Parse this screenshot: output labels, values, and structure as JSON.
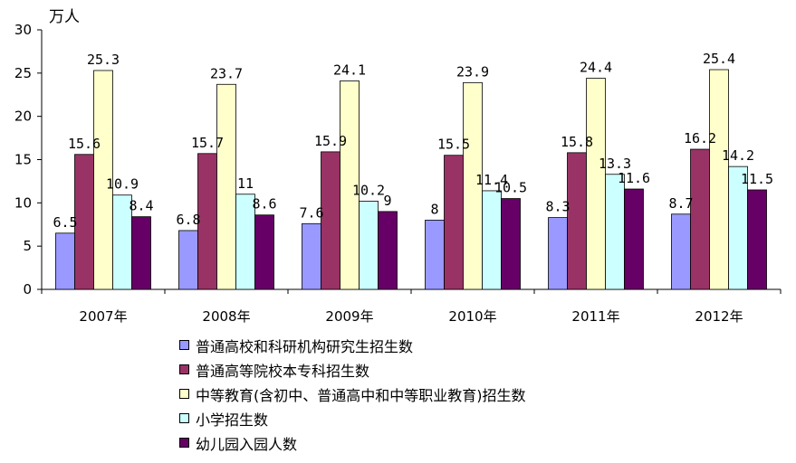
{
  "chart_data": {
    "type": "bar",
    "unit_label": "万人",
    "categories": [
      "2007年",
      "2008年",
      "2009年",
      "2010年",
      "2011年",
      "2012年"
    ],
    "ylim": [
      0,
      30
    ],
    "yticks": [
      0,
      5,
      10,
      15,
      20,
      25,
      30
    ],
    "grid": false,
    "legend_position": "bottom",
    "series": [
      {
        "name": "普通高校和科研机构研究生招生数",
        "color": "#9999ff",
        "values": [
          6.5,
          6.8,
          7.6,
          8,
          8.3,
          8.7
        ]
      },
      {
        "name": "普通高等院校本专科招生数",
        "color": "#993366",
        "values": [
          15.6,
          15.7,
          15.9,
          15.5,
          15.8,
          16.2
        ]
      },
      {
        "name": "中等教育(含初中、普通高中和中等职业教育)招生数",
        "color": "#ffffcc",
        "values": [
          25.3,
          23.7,
          24.1,
          23.9,
          24.4,
          25.4
        ]
      },
      {
        "name": "小学招生数",
        "color": "#ccffff",
        "values": [
          10.9,
          11,
          10.2,
          11.4,
          13.3,
          14.2
        ]
      },
      {
        "name": "幼儿园入园人数",
        "color": "#660066",
        "values": [
          8.4,
          8.6,
          9,
          10.5,
          11.6,
          11.5
        ]
      }
    ]
  }
}
